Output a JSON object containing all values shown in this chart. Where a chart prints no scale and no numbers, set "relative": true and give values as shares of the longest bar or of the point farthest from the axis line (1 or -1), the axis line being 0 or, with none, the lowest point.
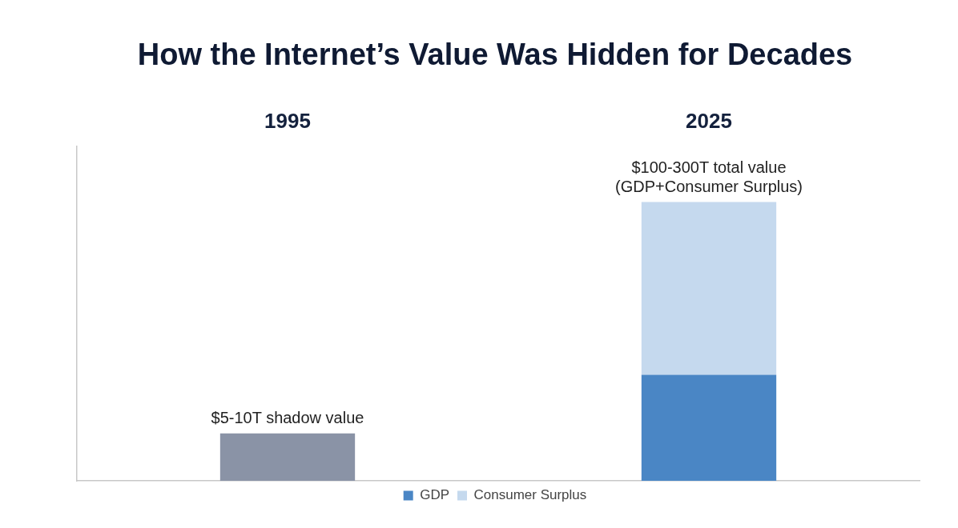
{
  "chart_data": {
    "type": "bar",
    "title": "How the Internet’s Value Was Hidden for Decades",
    "categories": [
      "1995",
      "2025"
    ],
    "relative": true,
    "stacked": true,
    "legend": "bottom",
    "grid": false,
    "series": [
      {
        "color": "#8a93a6",
        "values": [
          0.17,
          null
        ]
      },
      {
        "name": "GDP",
        "color": "#4a86c5",
        "values": [
          null,
          0.38
        ]
      },
      {
        "name": "Consumer Surplus",
        "color": "#c5d9ee",
        "values": [
          null,
          0.62
        ]
      }
    ],
    "annotations": [
      {
        "text": "$5-10T shadow value",
        "x": "1995",
        "y": 0.17
      },
      {
        "text": "$100-300T total value\n(GDP+Consumer Surplus)",
        "x": "2025",
        "y": 1
      }
    ]
  }
}
